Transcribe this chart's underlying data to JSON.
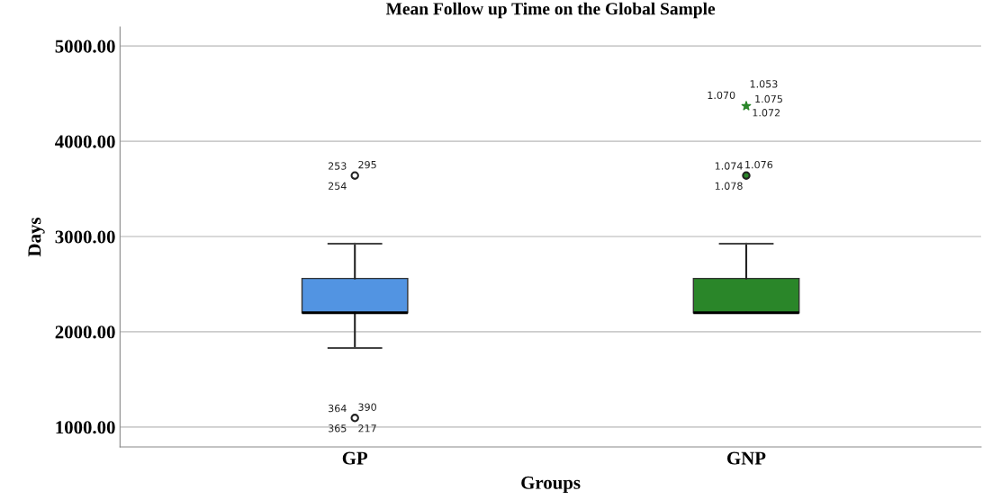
{
  "chart_data": {
    "type": "box",
    "title": "Mean Follow up Time on the Global Sample",
    "xlabel": "Groups",
    "ylabel": "Days",
    "categories": [
      "GP",
      "GNP"
    ],
    "colors": [
      "#5294e2",
      "#2a8629"
    ],
    "boxes": [
      {
        "low": 1830,
        "q1": 2200,
        "median": 2200,
        "q3": 2560,
        "high": 2925,
        "outliers": [
          3640,
          1095
        ]
      },
      {
        "low": 2200,
        "q1": 2200,
        "median": 2200,
        "q3": 2560,
        "high": 2925,
        "outliers": [
          3640,
          4370
        ]
      }
    ],
    "ylim": [
      790,
      5200
    ],
    "yticks": [
      {
        "value": 1000,
        "label": "1000.00"
      },
      {
        "value": 2000,
        "label": "2000.00"
      },
      {
        "value": 3000,
        "label": "3000.00"
      },
      {
        "value": 4000,
        "label": "4000.00"
      },
      {
        "value": 5000,
        "label": "5000.00"
      }
    ],
    "grid": "y",
    "annotations": [
      "253",
      "295",
      "254",
      "364",
      "390",
      "365",
      "217",
      "1.074",
      "1.076",
      "1.078",
      "1.053",
      "1.070",
      "1.075",
      "1.072"
    ]
  }
}
